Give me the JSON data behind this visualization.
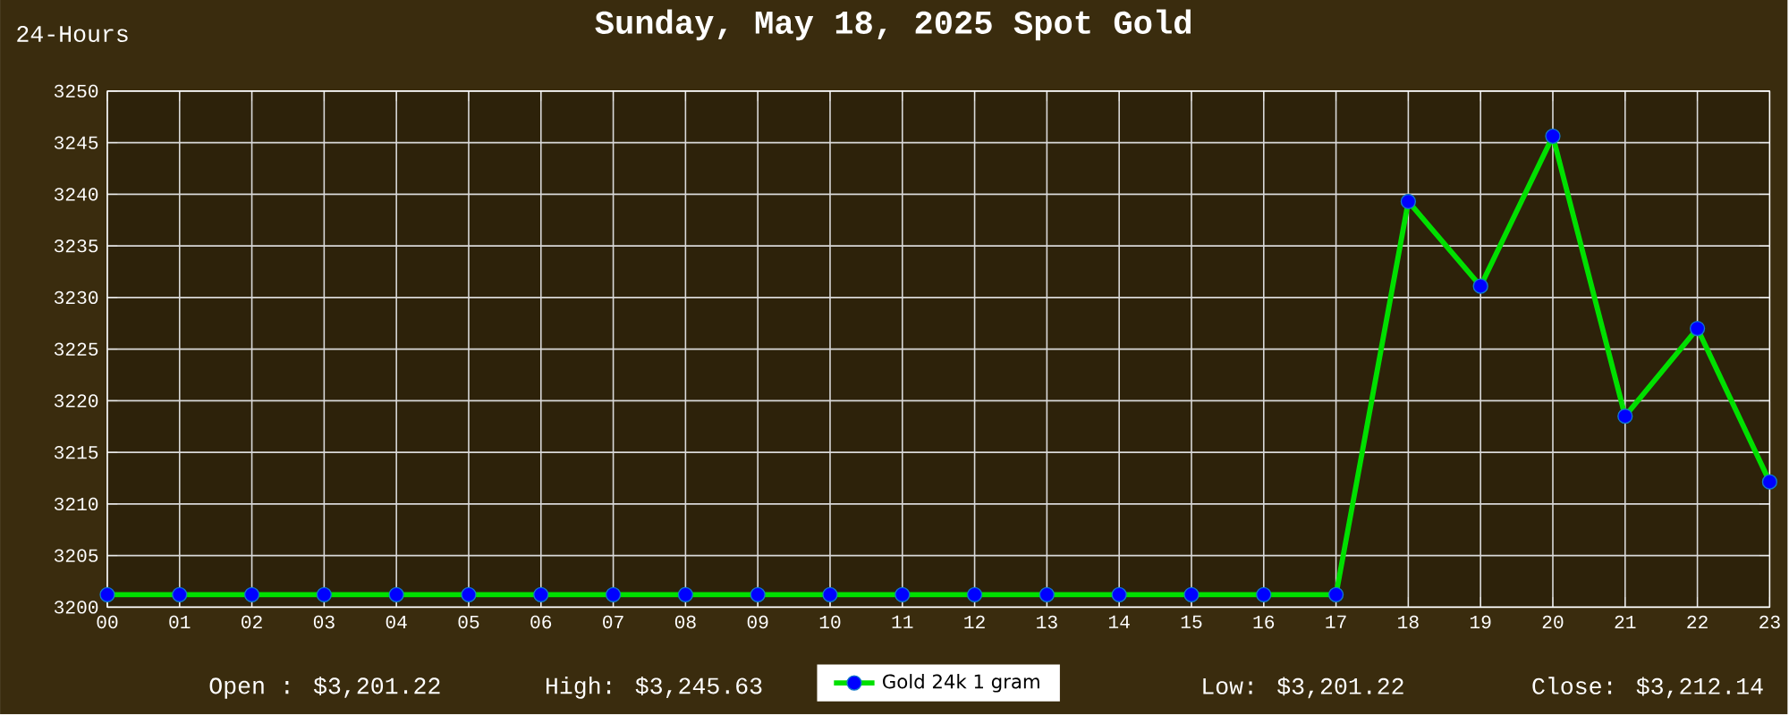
{
  "chart_data": {
    "type": "line",
    "title": "Sunday, May 18, 2025 Spot Gold",
    "subtitle": "24-Hours",
    "categories": [
      "00",
      "01",
      "02",
      "03",
      "04",
      "05",
      "06",
      "07",
      "08",
      "09",
      "10",
      "11",
      "12",
      "13",
      "14",
      "15",
      "16",
      "17",
      "18",
      "19",
      "20",
      "21",
      "22",
      "23"
    ],
    "series": [
      {
        "name": "Gold 24k 1 gram",
        "color": "#00e000",
        "values": [
          3201.22,
          3201.22,
          3201.22,
          3201.22,
          3201.22,
          3201.22,
          3201.22,
          3201.22,
          3201.22,
          3201.22,
          3201.22,
          3201.22,
          3201.22,
          3201.22,
          3201.22,
          3201.22,
          3201.22,
          3201.22,
          3239.3,
          3231.1,
          3245.63,
          3218.5,
          3227.0,
          3212.14
        ]
      }
    ],
    "ylim": [
      3200,
      3250
    ],
    "yticks": [
      3200,
      3205,
      3210,
      3215,
      3220,
      3225,
      3230,
      3235,
      3240,
      3245,
      3250
    ],
    "grid": true,
    "legend": "bottom",
    "marker": "circle",
    "annotations": [
      "Open : $3,201.22",
      "High: $3,245.63",
      "Low: $3,201.22",
      "Close: $3,212.14"
    ]
  }
}
